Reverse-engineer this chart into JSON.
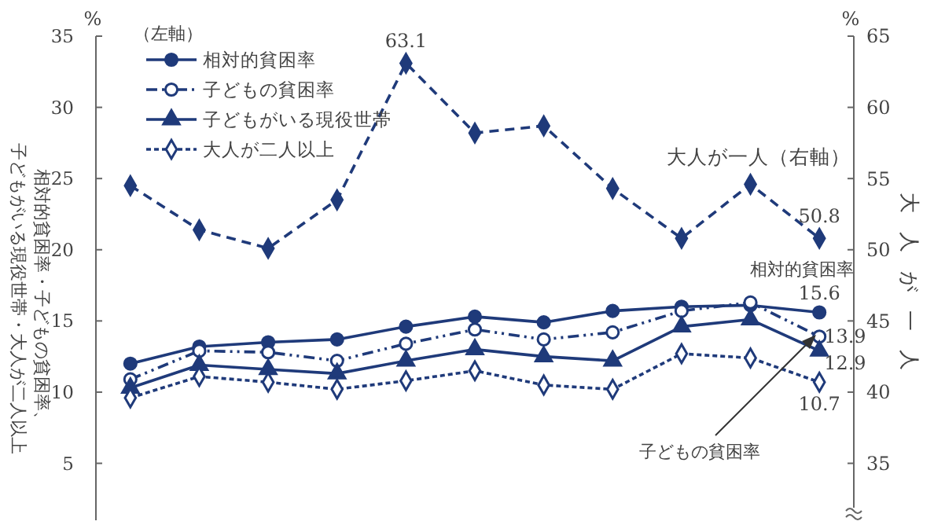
{
  "chart_data": {
    "type": "line",
    "categories": [
      null,
      null,
      null,
      null,
      null,
      null,
      null,
      null,
      null,
      null,
      null
    ],
    "ylabel": "相対的貧困率・子どもの貧困率、子どもがいる現役世帯・大人が二人以上",
    "y2label": "大人が一人",
    "legend_title": "（左軸）",
    "legend": "top left",
    "ylim": [
      1,
      35
    ],
    "yticks": [
      5,
      10,
      15,
      20,
      25,
      30,
      35
    ],
    "y2lim": [
      31,
      65
    ],
    "y2ticks": [
      35,
      40,
      45,
      50,
      55,
      60,
      65
    ],
    "series": [
      {
        "name": "相対的貧困率",
        "color": "#1f3a7a",
        "marker": "circle",
        "line_style": "solid",
        "values": [
          12.0,
          13.2,
          13.5,
          13.7,
          14.6,
          15.3,
          14.9,
          15.7,
          16.0,
          16.1,
          15.6
        ],
        "value_labels": [
          null,
          null,
          null,
          null,
          null,
          null,
          null,
          null,
          null,
          null,
          "15.6"
        ]
      },
      {
        "name": "子どもの貧困率",
        "color": "#1f3a7a",
        "marker": "circle",
        "line_style": "dotted",
        "values": [
          10.9,
          12.9,
          12.8,
          12.2,
          13.4,
          14.4,
          13.7,
          14.2,
          15.7,
          16.3,
          13.9
        ],
        "value_labels": [
          null,
          null,
          null,
          null,
          null,
          null,
          null,
          null,
          null,
          null,
          "13.9"
        ]
      },
      {
        "name": "子どもがいる現役世帯",
        "color": "#1f3a7a",
        "marker": "triangle",
        "line_style": "solid",
        "values": [
          10.3,
          11.9,
          11.6,
          11.3,
          12.2,
          13.0,
          12.5,
          12.2,
          14.6,
          15.1,
          12.9
        ],
        "value_labels": [
          null,
          null,
          null,
          null,
          null,
          null,
          null,
          null,
          null,
          null,
          "12.9"
        ]
      },
      {
        "name": "大人が二人以上",
        "color": "#1f3a7a",
        "marker": "diamond",
        "line_style": "dashed",
        "values": [
          9.6,
          11.1,
          10.7,
          10.2,
          10.8,
          11.5,
          10.5,
          10.2,
          12.7,
          12.4,
          10.7
        ],
        "value_labels": [
          null,
          null,
          null,
          null,
          null,
          null,
          null,
          null,
          null,
          null,
          "10.7"
        ]
      },
      {
        "name": "大人が一人（右軸）",
        "color": "#1f3a7a",
        "marker": "diamond",
        "line_style": "dashed",
        "axis": "y2",
        "values": [
          54.5,
          51.4,
          50.1,
          53.5,
          63.1,
          58.2,
          58.7,
          54.3,
          50.8,
          54.6,
          50.8
        ],
        "value_labels": [
          null,
          null,
          null,
          null,
          "63.1",
          null,
          null,
          null,
          null,
          null,
          "50.8"
        ]
      }
    ],
    "annotations": [
      "%",
      "%",
      "相対的貧困率",
      "子どもの貧困率"
    ]
  }
}
